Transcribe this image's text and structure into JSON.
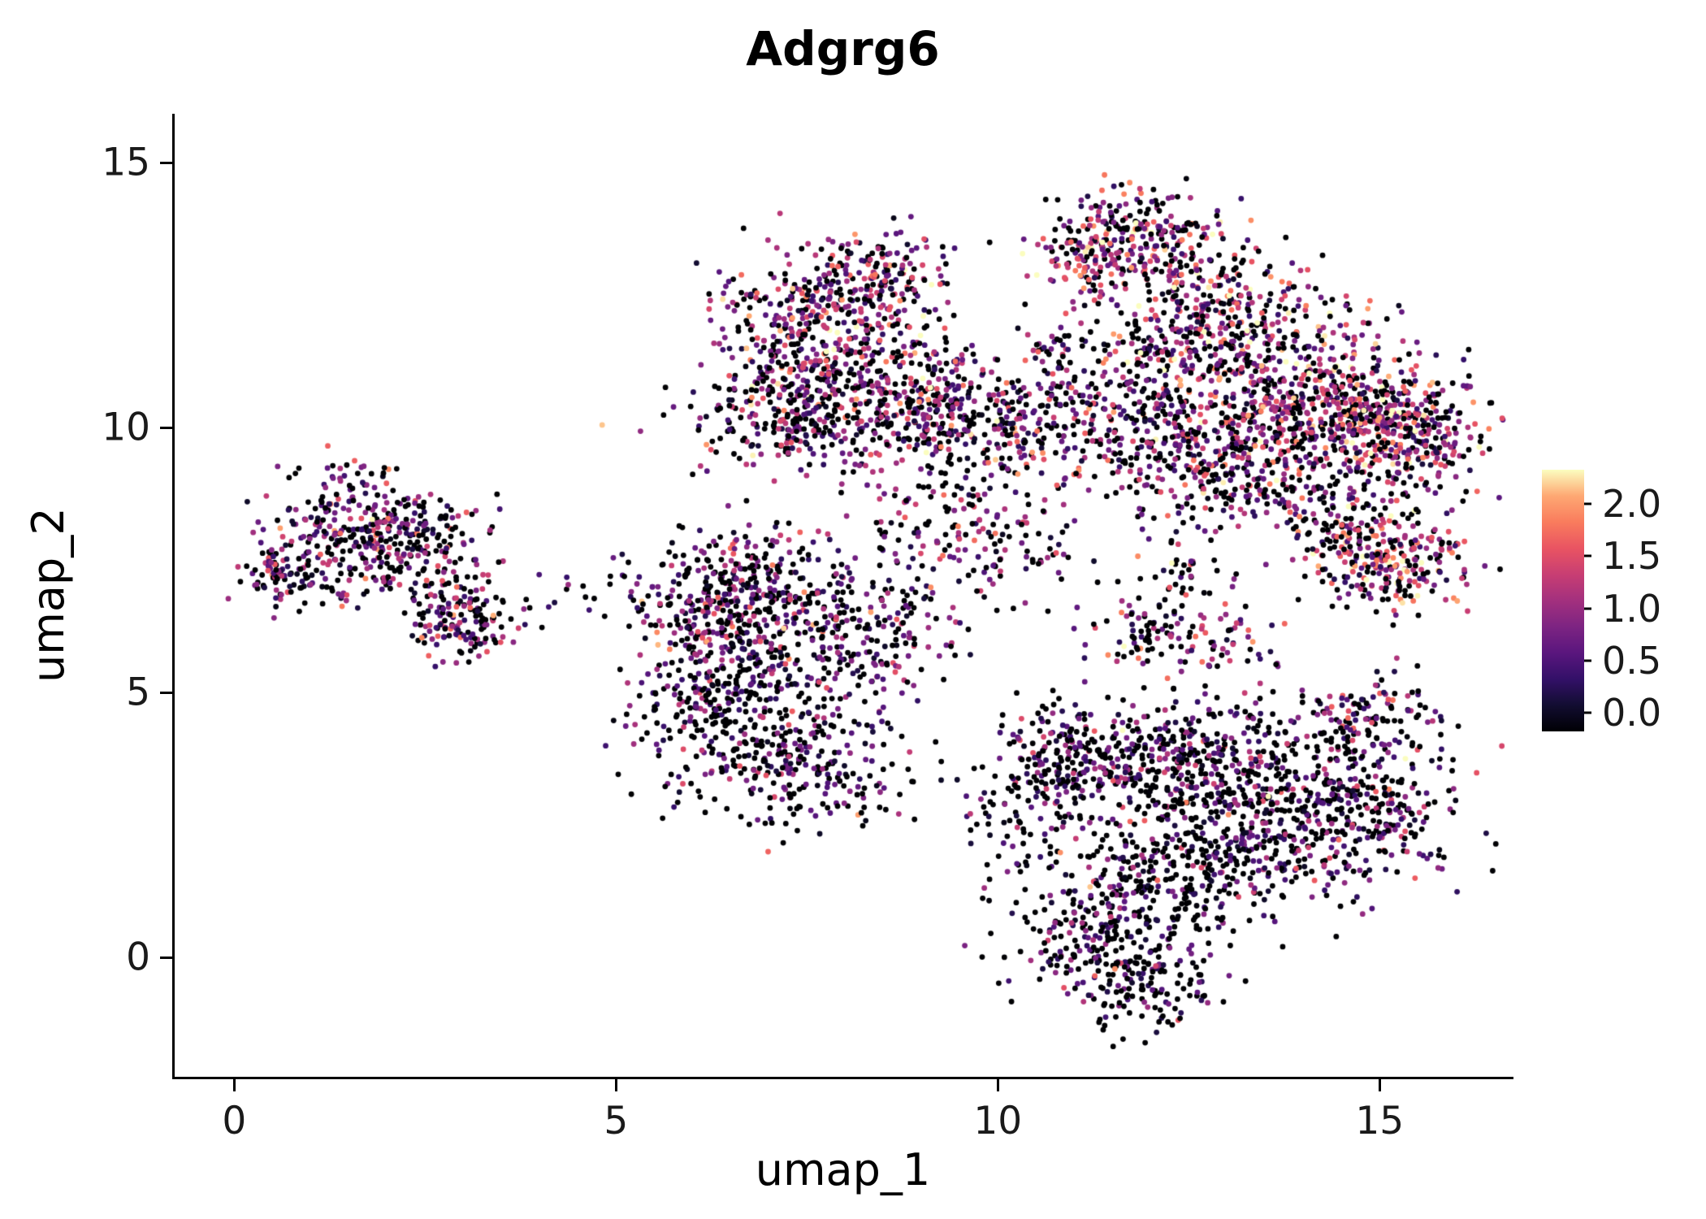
{
  "chart_data": {
    "type": "scatter",
    "title": "Adgrg6",
    "xlabel": "umap_1",
    "ylabel": "umap_2",
    "xlim": [
      -0.78,
      16.72
    ],
    "ylim": [
      -2.25,
      15.92
    ],
    "x_ticks": [
      0,
      5,
      10,
      15
    ],
    "x_tick_labels": [
      "0",
      "5",
      "10",
      "15"
    ],
    "y_ticks": [
      0,
      5,
      10,
      15
    ],
    "y_tick_labels": [
      "0",
      "5",
      "10",
      "15"
    ],
    "grid": false,
    "background": "#FFFFFF",
    "point_radius_px": 3.4,
    "seed": 42,
    "colorbar": {
      "title": "",
      "position": "right",
      "vmin": 0.0,
      "vmax": 2.2,
      "label_values": [
        "2.0",
        "1.5",
        "1.0",
        "0.5",
        "0.0"
      ],
      "colormap": "magma",
      "stops": [
        {
          "t": 0.0,
          "color": "#000004"
        },
        {
          "t": 0.1,
          "color": "#120D31"
        },
        {
          "t": 0.2,
          "color": "#331068"
        },
        {
          "t": 0.3,
          "color": "#5A167E"
        },
        {
          "t": 0.4,
          "color": "#7D2482"
        },
        {
          "t": 0.5,
          "color": "#A3307E"
        },
        {
          "t": 0.6,
          "color": "#C83E73"
        },
        {
          "t": 0.7,
          "color": "#E95462"
        },
        {
          "t": 0.8,
          "color": "#F97C5D"
        },
        {
          "t": 0.9,
          "color": "#FEA873"
        },
        {
          "t": 1.0,
          "color": "#FBFDBF"
        }
      ]
    },
    "clusters": [
      {
        "cx": 0.7,
        "cy": 7.3,
        "sx": 0.35,
        "sy": 0.3,
        "n": 110,
        "p0": 0.35,
        "mu": 0.7,
        "sig": 0.5
      },
      {
        "cx": 1.5,
        "cy": 8.3,
        "sx": 0.5,
        "sy": 0.5,
        "n": 170,
        "p0": 0.3,
        "mu": 0.8,
        "sig": 0.5
      },
      {
        "cx": 2.4,
        "cy": 7.9,
        "sx": 0.5,
        "sy": 0.4,
        "n": 130,
        "p0": 0.35,
        "mu": 0.7,
        "sig": 0.5
      },
      {
        "cx": 3.0,
        "cy": 6.4,
        "sx": 0.35,
        "sy": 0.4,
        "n": 150,
        "p0": 0.4,
        "mu": 0.7,
        "sig": 0.55
      },
      {
        "cx": 2.0,
        "cy": 7.3,
        "sx": 0.6,
        "sy": 0.4,
        "n": 90,
        "p0": 0.4,
        "mu": 0.6,
        "sig": 0.5
      },
      {
        "cx": 4.1,
        "cy": 6.8,
        "sx": 0.45,
        "sy": 0.3,
        "n": 14,
        "p0": 0.5,
        "mu": 0.5,
        "sig": 0.4
      },
      {
        "cx": 6.5,
        "cy": 7.0,
        "sx": 0.55,
        "sy": 0.55,
        "n": 240,
        "p0": 0.35,
        "mu": 0.7,
        "sig": 0.55
      },
      {
        "cx": 7.4,
        "cy": 5.9,
        "sx": 0.75,
        "sy": 0.7,
        "n": 300,
        "p0": 0.4,
        "mu": 0.6,
        "sig": 0.5
      },
      {
        "cx": 6.3,
        "cy": 4.7,
        "sx": 0.55,
        "sy": 0.75,
        "n": 260,
        "p0": 0.45,
        "mu": 0.55,
        "sig": 0.5
      },
      {
        "cx": 7.5,
        "cy": 3.6,
        "sx": 0.6,
        "sy": 0.6,
        "n": 220,
        "p0": 0.45,
        "mu": 0.55,
        "sig": 0.5
      },
      {
        "cx": 8.5,
        "cy": 6.4,
        "sx": 0.7,
        "sy": 0.8,
        "n": 150,
        "p0": 0.4,
        "mu": 0.65,
        "sig": 0.55
      },
      {
        "cx": 5.8,
        "cy": 6.4,
        "sx": 0.3,
        "sy": 0.5,
        "n": 70,
        "p0": 0.35,
        "mu": 0.8,
        "sig": 0.6
      },
      {
        "cx": 5.1,
        "cy": 6.7,
        "sx": 0.3,
        "sy": 0.4,
        "n": 12,
        "p0": 0.5,
        "mu": 0.5,
        "sig": 0.5
      },
      {
        "cx": 7.8,
        "cy": 12.5,
        "sx": 0.65,
        "sy": 0.5,
        "n": 240,
        "p0": 0.3,
        "mu": 0.95,
        "sig": 0.6
      },
      {
        "cx": 7.5,
        "cy": 11.3,
        "sx": 0.6,
        "sy": 0.5,
        "n": 220,
        "p0": 0.3,
        "mu": 0.9,
        "sig": 0.6
      },
      {
        "cx": 7.4,
        "cy": 10.2,
        "sx": 0.7,
        "sy": 0.5,
        "n": 260,
        "p0": 0.35,
        "mu": 0.8,
        "sig": 0.6
      },
      {
        "cx": 8.8,
        "cy": 10.7,
        "sx": 0.7,
        "sy": 0.7,
        "n": 260,
        "p0": 0.35,
        "mu": 0.85,
        "sig": 0.6
      },
      {
        "cx": 9.7,
        "cy": 10.0,
        "sx": 0.6,
        "sy": 0.55,
        "n": 200,
        "p0": 0.35,
        "mu": 0.9,
        "sig": 0.6
      },
      {
        "cx": 8.7,
        "cy": 13.0,
        "sx": 0.4,
        "sy": 0.35,
        "n": 90,
        "p0": 0.3,
        "mu": 1.1,
        "sig": 0.6
      },
      {
        "cx": 11.9,
        "cy": 13.7,
        "sx": 0.55,
        "sy": 0.45,
        "n": 190,
        "p0": 0.3,
        "mu": 1.0,
        "sig": 0.65
      },
      {
        "cx": 11.3,
        "cy": 13.2,
        "sx": 0.4,
        "sy": 0.4,
        "n": 110,
        "p0": 0.25,
        "mu": 1.2,
        "sig": 0.6
      },
      {
        "cx": 12.7,
        "cy": 12.3,
        "sx": 0.7,
        "sy": 0.7,
        "n": 260,
        "p0": 0.3,
        "mu": 1.0,
        "sig": 0.6
      },
      {
        "cx": 13.7,
        "cy": 11.1,
        "sx": 0.9,
        "sy": 0.7,
        "n": 360,
        "p0": 0.3,
        "mu": 1.05,
        "sig": 0.6
      },
      {
        "cx": 14.6,
        "cy": 10.1,
        "sx": 0.8,
        "sy": 0.6,
        "n": 400,
        "p0": 0.28,
        "mu": 1.1,
        "sig": 0.6
      },
      {
        "cx": 12.4,
        "cy": 9.8,
        "sx": 0.95,
        "sy": 0.6,
        "n": 340,
        "p0": 0.35,
        "mu": 0.9,
        "sig": 0.6
      },
      {
        "cx": 15.4,
        "cy": 9.8,
        "sx": 0.45,
        "sy": 0.55,
        "n": 200,
        "p0": 0.3,
        "mu": 1.15,
        "sig": 0.6
      },
      {
        "cx": 13.4,
        "cy": 8.9,
        "sx": 0.8,
        "sy": 0.4,
        "n": 180,
        "p0": 0.4,
        "mu": 0.8,
        "sig": 0.6
      },
      {
        "cx": 10.9,
        "cy": 10.7,
        "sx": 0.5,
        "sy": 0.8,
        "n": 150,
        "p0": 0.4,
        "mu": 0.8,
        "sig": 0.6
      },
      {
        "cx": 12.1,
        "cy": 11.4,
        "sx": 0.5,
        "sy": 0.5,
        "n": 70,
        "p0": 0.45,
        "mu": 0.8,
        "sig": 0.6
      },
      {
        "cx": 15.2,
        "cy": 7.5,
        "sx": 0.5,
        "sy": 0.5,
        "n": 240,
        "p0": 0.28,
        "mu": 1.2,
        "sig": 0.6
      },
      {
        "cx": 14.4,
        "cy": 7.9,
        "sx": 0.3,
        "sy": 0.4,
        "n": 80,
        "p0": 0.35,
        "mu": 0.9,
        "sig": 0.6
      },
      {
        "cx": 11.0,
        "cy": 3.9,
        "sx": 0.6,
        "sy": 0.5,
        "n": 200,
        "p0": 0.45,
        "mu": 0.6,
        "sig": 0.55
      },
      {
        "cx": 12.4,
        "cy": 3.7,
        "sx": 0.8,
        "sy": 0.6,
        "n": 300,
        "p0": 0.45,
        "mu": 0.6,
        "sig": 0.55
      },
      {
        "cx": 13.8,
        "cy": 2.9,
        "sx": 0.8,
        "sy": 0.8,
        "n": 360,
        "p0": 0.45,
        "mu": 0.65,
        "sig": 0.55
      },
      {
        "cx": 12.6,
        "cy": 1.9,
        "sx": 0.9,
        "sy": 0.7,
        "n": 320,
        "p0": 0.5,
        "mu": 0.55,
        "sig": 0.5
      },
      {
        "cx": 11.4,
        "cy": 0.6,
        "sx": 0.7,
        "sy": 0.7,
        "n": 240,
        "p0": 0.55,
        "mu": 0.5,
        "sig": 0.5
      },
      {
        "cx": 11.9,
        "cy": -0.5,
        "sx": 0.55,
        "sy": 0.4,
        "n": 130,
        "p0": 0.55,
        "mu": 0.5,
        "sig": 0.5
      },
      {
        "cx": 14.8,
        "cy": 4.4,
        "sx": 0.5,
        "sy": 0.5,
        "n": 150,
        "p0": 0.4,
        "mu": 0.7,
        "sig": 0.55
      },
      {
        "cx": 15.0,
        "cy": 2.6,
        "sx": 0.5,
        "sy": 0.6,
        "n": 160,
        "p0": 0.45,
        "mu": 0.7,
        "sig": 0.55
      },
      {
        "cx": 10.3,
        "cy": 2.8,
        "sx": 0.4,
        "sy": 0.7,
        "n": 90,
        "p0": 0.5,
        "mu": 0.5,
        "sig": 0.5
      },
      {
        "cx": 11.9,
        "cy": 6.1,
        "sx": 0.45,
        "sy": 0.4,
        "n": 80,
        "p0": 0.4,
        "mu": 0.8,
        "sig": 0.6
      },
      {
        "cx": 13.0,
        "cy": 5.9,
        "sx": 0.35,
        "sy": 0.35,
        "n": 50,
        "p0": 0.4,
        "mu": 0.8,
        "sig": 0.6
      },
      {
        "cx": 10.4,
        "cy": 7.7,
        "sx": 0.5,
        "sy": 0.5,
        "n": 60,
        "p0": 0.4,
        "mu": 0.9,
        "sig": 0.6
      },
      {
        "cx": 12.6,
        "cy": 7.2,
        "sx": 0.4,
        "sy": 0.4,
        "n": 40,
        "p0": 0.45,
        "mu": 0.8,
        "sig": 0.6
      },
      {
        "cx": 9.4,
        "cy": 8.4,
        "sx": 0.6,
        "sy": 0.4,
        "n": 90,
        "p0": 0.35,
        "mu": 0.9,
        "sig": 0.6
      }
    ]
  }
}
